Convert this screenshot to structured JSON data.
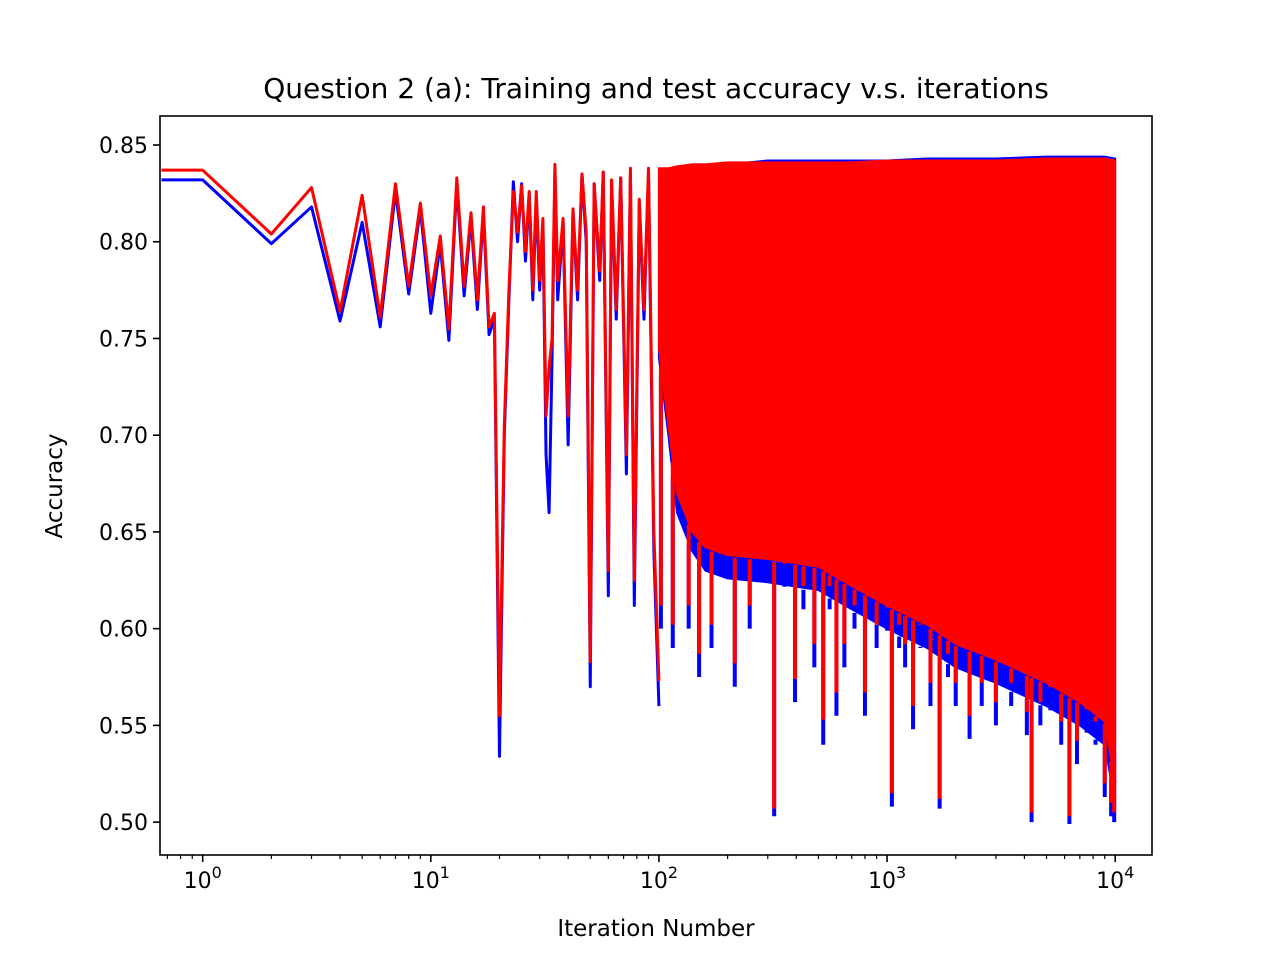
{
  "chart_data": {
    "type": "line",
    "title": "Question 2 (a): Training and test accuracy v.s. iterations",
    "xlabel": "Iteration Number",
    "ylabel": "Accuracy",
    "xscale": "log",
    "xlim": [
      0.65,
      14500
    ],
    "ylim": [
      0.483,
      0.865
    ],
    "grid": false,
    "legend": "none",
    "xticks": [
      {
        "value": 1,
        "base": "10",
        "exp": "0"
      },
      {
        "value": 10,
        "base": "10",
        "exp": "1"
      },
      {
        "value": 100,
        "base": "10",
        "exp": "2"
      },
      {
        "value": 1000,
        "base": "10",
        "exp": "3"
      },
      {
        "value": 10000,
        "base": "10",
        "exp": "4"
      }
    ],
    "yticks": [
      {
        "value": 0.5,
        "label": "0.50"
      },
      {
        "value": 0.55,
        "label": "0.55"
      },
      {
        "value": 0.6,
        "label": "0.60"
      },
      {
        "value": 0.65,
        "label": "0.65"
      },
      {
        "value": 0.7,
        "label": "0.70"
      },
      {
        "value": 0.75,
        "label": "0.75"
      },
      {
        "value": 0.8,
        "label": "0.80"
      },
      {
        "value": 0.85,
        "label": "0.85"
      }
    ],
    "series": [
      {
        "color": "#0000ff",
        "points": [
          [
            0,
            0.832
          ],
          [
            1,
            0.832
          ],
          [
            2,
            0.799
          ],
          [
            3,
            0.818
          ],
          [
            4,
            0.759
          ],
          [
            5,
            0.81
          ],
          [
            6,
            0.756
          ],
          [
            7,
            0.826
          ],
          [
            8,
            0.773
          ],
          [
            9,
            0.817
          ],
          [
            10,
            0.763
          ],
          [
            11,
            0.799
          ],
          [
            12,
            0.749
          ],
          [
            13,
            0.83
          ],
          [
            14,
            0.772
          ],
          [
            15,
            0.812
          ],
          [
            16,
            0.765
          ],
          [
            17,
            0.815
          ],
          [
            18,
            0.752
          ],
          [
            19,
            0.76
          ],
          [
            20,
            0.534
          ],
          [
            21,
            0.7
          ],
          [
            22,
            0.77
          ],
          [
            23,
            0.831
          ],
          [
            24,
            0.8
          ],
          [
            25,
            0.83
          ],
          [
            26,
            0.79
          ],
          [
            27,
            0.825
          ],
          [
            28,
            0.77
          ],
          [
            29,
            0.823
          ],
          [
            30,
            0.775
          ],
          [
            31,
            0.81
          ],
          [
            32,
            0.69
          ],
          [
            33,
            0.66
          ],
          [
            34,
            0.74
          ],
          [
            35,
            0.836
          ],
          [
            36,
            0.77
          ],
          [
            38,
            0.81
          ],
          [
            40,
            0.695
          ],
          [
            42,
            0.815
          ],
          [
            44,
            0.77
          ],
          [
            46,
            0.835
          ],
          [
            48,
            0.8
          ],
          [
            50,
            0.57
          ],
          [
            52,
            0.83
          ],
          [
            55,
            0.78
          ],
          [
            57,
            0.836
          ],
          [
            60,
            0.617
          ],
          [
            62,
            0.83
          ],
          [
            65,
            0.76
          ],
          [
            68,
            0.833
          ],
          [
            72,
            0.68
          ],
          [
            75,
            0.836
          ],
          [
            78,
            0.612
          ],
          [
            82,
            0.82
          ],
          [
            86,
            0.76
          ],
          [
            90,
            0.836
          ],
          [
            95,
            0.64
          ],
          [
            100,
            0.56
          ]
        ],
        "band": [
          [
            100,
            0.74,
            0.836
          ],
          [
            110,
            0.7,
            0.836
          ],
          [
            120,
            0.66,
            0.838
          ],
          [
            140,
            0.64,
            0.84
          ],
          [
            160,
            0.63,
            0.84
          ],
          [
            200,
            0.626,
            0.84
          ],
          [
            300,
            0.624,
            0.842
          ],
          [
            500,
            0.62,
            0.842
          ],
          [
            700,
            0.61,
            0.842
          ],
          [
            1000,
            0.6,
            0.842
          ],
          [
            1500,
            0.59,
            0.843
          ],
          [
            2000,
            0.58,
            0.843
          ],
          [
            3000,
            0.572,
            0.843
          ],
          [
            5000,
            0.56,
            0.844
          ],
          [
            7000,
            0.55,
            0.844
          ],
          [
            9000,
            0.54,
            0.844
          ],
          [
            10000,
            0.51,
            0.843
          ]
        ],
        "dips": [
          [
            102,
            0.6
          ],
          [
            115,
            0.59
          ],
          [
            135,
            0.6
          ],
          [
            150,
            0.575
          ],
          [
            170,
            0.59
          ],
          [
            215,
            0.57
          ],
          [
            250,
            0.6
          ],
          [
            320,
            0.503
          ],
          [
            355,
            0.63
          ],
          [
            395,
            0.562
          ],
          [
            430,
            0.61
          ],
          [
            480,
            0.58
          ],
          [
            525,
            0.54
          ],
          [
            560,
            0.61
          ],
          [
            600,
            0.555
          ],
          [
            650,
            0.58
          ],
          [
            720,
            0.6
          ],
          [
            800,
            0.555
          ],
          [
            900,
            0.59
          ],
          [
            1000,
            0.6
          ],
          [
            1050,
            0.508
          ],
          [
            1130,
            0.59
          ],
          [
            1200,
            0.58
          ],
          [
            1300,
            0.548
          ],
          [
            1400,
            0.59
          ],
          [
            1550,
            0.56
          ],
          [
            1700,
            0.507
          ],
          [
            1850,
            0.575
          ],
          [
            2000,
            0.56
          ],
          [
            2300,
            0.543
          ],
          [
            2600,
            0.56
          ],
          [
            3000,
            0.55
          ],
          [
            3500,
            0.56
          ],
          [
            4100,
            0.545
          ],
          [
            4300,
            0.5
          ],
          [
            4700,
            0.55
          ],
          [
            5200,
            0.56
          ],
          [
            5800,
            0.54
          ],
          [
            6300,
            0.499
          ],
          [
            6800,
            0.53
          ],
          [
            7500,
            0.56
          ],
          [
            8200,
            0.54
          ],
          [
            9000,
            0.513
          ],
          [
            9600,
            0.503
          ],
          [
            9900,
            0.5
          ]
        ]
      },
      {
        "color": "#ff0000",
        "points": [
          [
            0,
            0.837
          ],
          [
            1,
            0.837
          ],
          [
            2,
            0.804
          ],
          [
            3,
            0.828
          ],
          [
            4,
            0.764
          ],
          [
            5,
            0.824
          ],
          [
            6,
            0.761
          ],
          [
            7,
            0.83
          ],
          [
            8,
            0.777
          ],
          [
            9,
            0.82
          ],
          [
            10,
            0.772
          ],
          [
            11,
            0.803
          ],
          [
            12,
            0.755
          ],
          [
            13,
            0.833
          ],
          [
            14,
            0.777
          ],
          [
            15,
            0.815
          ],
          [
            16,
            0.77
          ],
          [
            17,
            0.818
          ],
          [
            18,
            0.756
          ],
          [
            19,
            0.763
          ],
          [
            20,
            0.555
          ],
          [
            21,
            0.705
          ],
          [
            22,
            0.775
          ],
          [
            23,
            0.826
          ],
          [
            24,
            0.805
          ],
          [
            25,
            0.829
          ],
          [
            26,
            0.795
          ],
          [
            27,
            0.826
          ],
          [
            28,
            0.775
          ],
          [
            29,
            0.826
          ],
          [
            30,
            0.78
          ],
          [
            31,
            0.812
          ],
          [
            32,
            0.71
          ],
          [
            33,
            0.735
          ],
          [
            34,
            0.75
          ],
          [
            35,
            0.84
          ],
          [
            36,
            0.78
          ],
          [
            38,
            0.812
          ],
          [
            40,
            0.71
          ],
          [
            42,
            0.817
          ],
          [
            44,
            0.775
          ],
          [
            46,
            0.835
          ],
          [
            48,
            0.805
          ],
          [
            50,
            0.583
          ],
          [
            52,
            0.83
          ],
          [
            55,
            0.785
          ],
          [
            57,
            0.836
          ],
          [
            60,
            0.63
          ],
          [
            62,
            0.832
          ],
          [
            65,
            0.765
          ],
          [
            68,
            0.833
          ],
          [
            72,
            0.69
          ],
          [
            75,
            0.838
          ],
          [
            78,
            0.625
          ],
          [
            82,
            0.822
          ],
          [
            86,
            0.765
          ],
          [
            90,
            0.838
          ],
          [
            95,
            0.65
          ],
          [
            100,
            0.573
          ]
        ],
        "band": [
          [
            100,
            0.745,
            0.838
          ],
          [
            110,
            0.705,
            0.838
          ],
          [
            120,
            0.67,
            0.839
          ],
          [
            140,
            0.65,
            0.84
          ],
          [
            160,
            0.642,
            0.84
          ],
          [
            200,
            0.638,
            0.841
          ],
          [
            300,
            0.636,
            0.841
          ],
          [
            500,
            0.632,
            0.841
          ],
          [
            700,
            0.622,
            0.841
          ],
          [
            1000,
            0.612,
            0.842
          ],
          [
            1500,
            0.602,
            0.842
          ],
          [
            2000,
            0.592,
            0.842
          ],
          [
            3000,
            0.584,
            0.842
          ],
          [
            5000,
            0.572,
            0.843
          ],
          [
            7000,
            0.562,
            0.843
          ],
          [
            9000,
            0.552,
            0.843
          ],
          [
            10000,
            0.52,
            0.842
          ]
        ],
        "dips": [
          [
            102,
            0.612
          ],
          [
            115,
            0.602
          ],
          [
            135,
            0.612
          ],
          [
            150,
            0.587
          ],
          [
            170,
            0.602
          ],
          [
            215,
            0.582
          ],
          [
            250,
            0.612
          ],
          [
            320,
            0.507
          ],
          [
            355,
            0.642
          ],
          [
            395,
            0.574
          ],
          [
            430,
            0.622
          ],
          [
            480,
            0.592
          ],
          [
            525,
            0.553
          ],
          [
            560,
            0.622
          ],
          [
            600,
            0.567
          ],
          [
            650,
            0.592
          ],
          [
            720,
            0.612
          ],
          [
            800,
            0.567
          ],
          [
            900,
            0.602
          ],
          [
            1000,
            0.612
          ],
          [
            1050,
            0.515
          ],
          [
            1130,
            0.602
          ],
          [
            1200,
            0.592
          ],
          [
            1300,
            0.56
          ],
          [
            1400,
            0.602
          ],
          [
            1550,
            0.572
          ],
          [
            1700,
            0.512
          ],
          [
            1850,
            0.587
          ],
          [
            2000,
            0.572
          ],
          [
            2300,
            0.555
          ],
          [
            2600,
            0.572
          ],
          [
            3000,
            0.562
          ],
          [
            3500,
            0.572
          ],
          [
            4100,
            0.557
          ],
          [
            4300,
            0.505
          ],
          [
            4700,
            0.562
          ],
          [
            5200,
            0.572
          ],
          [
            5800,
            0.552
          ],
          [
            6300,
            0.503
          ],
          [
            6800,
            0.542
          ],
          [
            7500,
            0.572
          ],
          [
            8200,
            0.552
          ],
          [
            9000,
            0.52
          ],
          [
            9600,
            0.51
          ],
          [
            9900,
            0.505
          ]
        ]
      }
    ]
  }
}
